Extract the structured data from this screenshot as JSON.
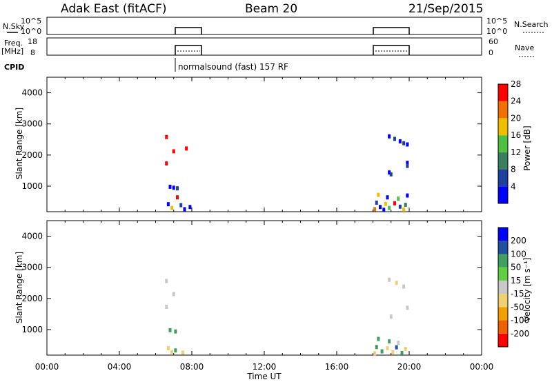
{
  "header": {
    "station": "Adak East (fitACF)",
    "beam": "Beam 20",
    "date": "21/Sep/2015"
  },
  "nsky": {
    "label": "N.Sky",
    "ticks": [
      "10^5",
      "10^0"
    ],
    "right_label": "N.Search"
  },
  "freq": {
    "label_line1": "Freq.",
    "label_line2": "[MHz]",
    "left_ticks": [
      18,
      8
    ],
    "right_ticks": [
      60,
      0
    ],
    "right_label": "Nave"
  },
  "cpid": {
    "label": "CPID",
    "text": "normalsound (fast) 157 RF"
  },
  "colors": {
    "power": [
      "#0000ff",
      "#2040a0",
      "#3a8060",
      "#50c040",
      "#f0c000",
      "#f07000",
      "#ff0000"
    ],
    "velocity": [
      "#ff0000",
      "#f06000",
      "#f0a000",
      "#f0d070",
      "#c8c8c8",
      "#60d040",
      "#40a060",
      "#2050a0",
      "#0000ff"
    ]
  },
  "chart_data": [
    {
      "type": "heatmap",
      "name": "power",
      "xlabel": "",
      "ylabel": "Slant Range [km]",
      "xlim": [
        0,
        24
      ],
      "ylim": [
        180,
        4500
      ],
      "yticks": [
        1000,
        2000,
        3000,
        4000
      ],
      "colorbar_label": "Power [dB]",
      "colorbar_ticks": [
        4,
        8,
        12,
        16,
        20,
        24,
        28
      ],
      "points": [
        {
          "t": 6.6,
          "r": 2580,
          "v": 28
        },
        {
          "t": 7.7,
          "r": 2210,
          "v": 28
        },
        {
          "t": 7.0,
          "r": 2120,
          "v": 28
        },
        {
          "t": 6.6,
          "r": 1730,
          "v": 28
        },
        {
          "t": 7.2,
          "r": 640,
          "v": 28
        },
        {
          "t": 6.8,
          "r": 980,
          "v": 4
        },
        {
          "t": 7.0,
          "r": 950,
          "v": 4
        },
        {
          "t": 7.2,
          "r": 930,
          "v": 8
        },
        {
          "t": 6.7,
          "r": 420,
          "v": 4
        },
        {
          "t": 7.4,
          "r": 390,
          "v": 8
        },
        {
          "t": 7.9,
          "r": 330,
          "v": 4
        },
        {
          "t": 6.9,
          "r": 300,
          "v": 20
        },
        {
          "t": 7.6,
          "r": 260,
          "v": 4
        },
        {
          "t": 18.9,
          "r": 2600,
          "v": 4
        },
        {
          "t": 19.2,
          "r": 2520,
          "v": 8
        },
        {
          "t": 19.5,
          "r": 2440,
          "v": 4
        },
        {
          "t": 19.7,
          "r": 2380,
          "v": 8
        },
        {
          "t": 19.9,
          "r": 2340,
          "v": 4
        },
        {
          "t": 19.9,
          "r": 1750,
          "v": 4
        },
        {
          "t": 19.9,
          "r": 1650,
          "v": 8
        },
        {
          "t": 18.9,
          "r": 1440,
          "v": 4
        },
        {
          "t": 19.0,
          "r": 1380,
          "v": 8
        },
        {
          "t": 18.3,
          "r": 720,
          "v": 20
        },
        {
          "t": 18.8,
          "r": 640,
          "v": 4
        },
        {
          "t": 19.4,
          "r": 600,
          "v": 16
        },
        {
          "t": 19.9,
          "r": 700,
          "v": 4
        },
        {
          "t": 18.2,
          "r": 470,
          "v": 8
        },
        {
          "t": 18.7,
          "r": 430,
          "v": 20
        },
        {
          "t": 19.2,
          "r": 450,
          "v": 28
        },
        {
          "t": 19.8,
          "r": 400,
          "v": 12
        },
        {
          "t": 18.4,
          "r": 330,
          "v": 4
        },
        {
          "t": 18.9,
          "r": 300,
          "v": 16
        },
        {
          "t": 19.5,
          "r": 340,
          "v": 8
        },
        {
          "t": 18.1,
          "r": 260,
          "v": 24
        },
        {
          "t": 18.6,
          "r": 240,
          "v": 4
        },
        {
          "t": 19.7,
          "r": 250,
          "v": 20
        }
      ]
    },
    {
      "type": "heatmap",
      "name": "velocity",
      "xlabel": "Time UT",
      "ylabel": "Slant Range [km]",
      "xlim": [
        0,
        24
      ],
      "xticks": [
        "00:00",
        "04:00",
        "08:00",
        "12:00",
        "16:00",
        "20:00",
        "00:00"
      ],
      "ylim": [
        180,
        4500
      ],
      "yticks": [
        1000,
        2000,
        3000,
        4000
      ],
      "colorbar_label": "Velocity [m s⁻¹]",
      "colorbar_ticks": [
        -200,
        -100,
        -50,
        -15,
        15,
        50,
        100,
        200
      ],
      "points": [
        {
          "t": 6.6,
          "r": 2560,
          "v": 0
        },
        {
          "t": 7.0,
          "r": 2140,
          "v": 0
        },
        {
          "t": 6.6,
          "r": 1730,
          "v": 0
        },
        {
          "t": 6.8,
          "r": 980,
          "v": 60
        },
        {
          "t": 7.1,
          "r": 940,
          "v": 60
        },
        {
          "t": 6.7,
          "r": 400,
          "v": -40
        },
        {
          "t": 7.1,
          "r": 330,
          "v": 60
        },
        {
          "t": 6.9,
          "r": 280,
          "v": -40
        },
        {
          "t": 7.5,
          "r": 260,
          "v": -20
        },
        {
          "t": 18.9,
          "r": 2600,
          "v": 0
        },
        {
          "t": 19.3,
          "r": 2500,
          "v": -20
        },
        {
          "t": 19.7,
          "r": 2380,
          "v": 0
        },
        {
          "t": 19.9,
          "r": 1700,
          "v": 0
        },
        {
          "t": 19.0,
          "r": 1420,
          "v": 0
        },
        {
          "t": 18.3,
          "r": 700,
          "v": 60
        },
        {
          "t": 18.9,
          "r": 620,
          "v": 60
        },
        {
          "t": 19.4,
          "r": 580,
          "v": 0
        },
        {
          "t": 18.2,
          "r": 440,
          "v": 60
        },
        {
          "t": 18.8,
          "r": 400,
          "v": -20
        },
        {
          "t": 19.3,
          "r": 430,
          "v": 120
        },
        {
          "t": 19.8,
          "r": 380,
          "v": -40
        },
        {
          "t": 18.5,
          "r": 300,
          "v": 60
        },
        {
          "t": 19.1,
          "r": 270,
          "v": -20
        },
        {
          "t": 19.6,
          "r": 250,
          "v": 60
        },
        {
          "t": 18.1,
          "r": 240,
          "v": -40
        }
      ]
    }
  ]
}
